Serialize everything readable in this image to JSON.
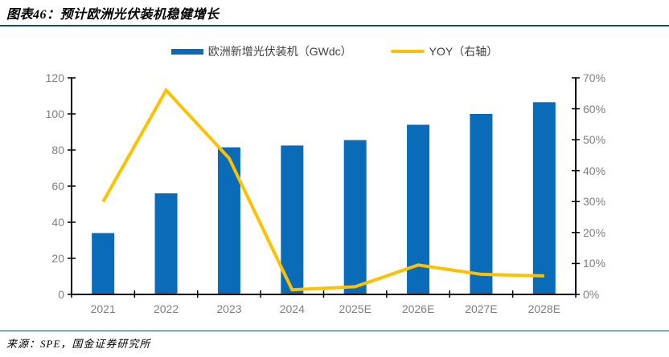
{
  "header": {
    "title": "图表46：预计欧洲光伏装机稳健增长"
  },
  "legend": {
    "bar_label": "欧洲新增光伏装机（GWdc）",
    "line_label": "YOY（右轴）"
  },
  "footer": {
    "source": "来源：SPE，国金证券研究所"
  },
  "colors": {
    "bar": "#0a6cb8",
    "line": "#ffc000",
    "divider": "#1a4a60",
    "axis": "#000000",
    "tick_label": "#808080",
    "legend_text": "#404040"
  },
  "chart_data": {
    "type": "combo-bar-line",
    "title": "预计欧洲光伏装机稳健增长",
    "categories": [
      "2021",
      "2022",
      "2023",
      "2024",
      "2025E",
      "2026E",
      "2027E",
      "2028E"
    ],
    "series": [
      {
        "name": "欧洲新增光伏装机（GWdc）",
        "type": "bar",
        "axis": "left",
        "values": [
          34,
          56,
          81.5,
          82.5,
          85.5,
          94,
          100,
          106.5
        ]
      },
      {
        "name": "YOY（右轴）",
        "type": "line",
        "axis": "right",
        "unit": "%",
        "values": [
          30,
          66,
          44,
          1.5,
          2.5,
          9.5,
          6.5,
          6
        ]
      }
    ],
    "left_axis": {
      "min": 0,
      "max": 120,
      "tick_values": [
        0,
        20,
        40,
        60,
        80,
        100,
        120
      ],
      "tick_labels": [
        "0",
        "20",
        "40",
        "60",
        "80",
        "100",
        "120"
      ]
    },
    "right_axis": {
      "min": 0,
      "max": 70,
      "tick_values": [
        0,
        10,
        20,
        30,
        40,
        50,
        60,
        70
      ],
      "tick_labels": [
        "0%",
        "10%",
        "20%",
        "30%",
        "40%",
        "50%",
        "60%",
        "70%"
      ]
    },
    "legend_position": "top",
    "grid": false
  }
}
